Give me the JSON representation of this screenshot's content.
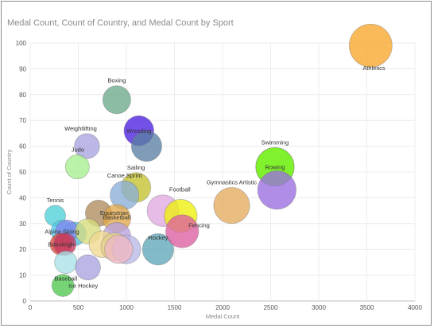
{
  "chart_data": {
    "type": "scatter",
    "title": "Medal Count, Count of Country, and Medal Count by Sport",
    "xlabel": "Medal Count",
    "ylabel": "Count of Country",
    "xlim": [
      0,
      4000
    ],
    "ylim": [
      0,
      100
    ],
    "xticks": [
      0,
      500,
      1000,
      1500,
      2000,
      2500,
      3000,
      3500,
      4000
    ],
    "yticks": [
      0,
      10,
      20,
      30,
      40,
      50,
      60,
      70,
      80,
      90,
      100
    ],
    "grid": true,
    "size_measure": "Medal Count",
    "points": [
      {
        "label": "Athletics",
        "x": 3540,
        "y": 99,
        "color": "#f9a72b"
      },
      {
        "label": "Boxing",
        "x": 900,
        "y": 78,
        "color": "#6bab8a"
      },
      {
        "label": "Wrestling",
        "x": 1130,
        "y": 66,
        "color": "#4b1fe0"
      },
      {
        "label": "",
        "x": 1210,
        "y": 60,
        "color": "#5a7fa3"
      },
      {
        "label": "Weightlifting",
        "x": 590,
        "y": 60,
        "color": "#a8a3e0"
      },
      {
        "label": "Judo",
        "x": 490,
        "y": 52,
        "color": "#a6ee8e"
      },
      {
        "label": "Swimming",
        "x": 2545,
        "y": 52,
        "color": "#7af023"
      },
      {
        "label": "Rowing",
        "x": 2545,
        "y": 52,
        "color": "#7af023"
      },
      {
        "label": "",
        "x": 2565,
        "y": 43,
        "color": "#9a6ee0"
      },
      {
        "label": "Sailing",
        "x": 1100,
        "y": 44,
        "color": "#c3c22e"
      },
      {
        "label": "Canoe Sprint",
        "x": 980,
        "y": 41,
        "color": "#8aaed8"
      },
      {
        "label": "Gymnastics Artistic",
        "x": 2095,
        "y": 37,
        "color": "#e4ab5c"
      },
      {
        "label": "Football",
        "x": 1380,
        "y": 35,
        "color": "#e0a9e0"
      },
      {
        "label": "",
        "x": 1565,
        "y": 33,
        "color": "#eef00c"
      },
      {
        "label": "Equestrian",
        "x": 710,
        "y": 34,
        "color": "#b08c5c"
      },
      {
        "label": "",
        "x": 900,
        "y": 32,
        "color": "#e0a84a"
      },
      {
        "label": "Tennis",
        "x": 260,
        "y": 33,
        "color": "#4fd0d8"
      },
      {
        "label": "Alpine Skiing",
        "x": 330,
        "y": 27,
        "color": "#4fc8e8"
      },
      {
        "label": "",
        "x": 460,
        "y": 26,
        "color": "#4fc0e0"
      },
      {
        "label": "",
        "x": 380,
        "y": 27,
        "color": "#7f88ee"
      },
      {
        "label": "",
        "x": 600,
        "y": 27,
        "color": "#d6dc7c"
      },
      {
        "label": "Basketball",
        "x": 900,
        "y": 25,
        "color": "#b9a2e0"
      },
      {
        "label": "Hockey",
        "x": 1330,
        "y": 20,
        "color": "#5fa6b8"
      },
      {
        "label": "Fencing",
        "x": 1580,
        "y": 27,
        "color": "#dc5fa0"
      },
      {
        "label": "",
        "x": 750,
        "y": 22,
        "color": "#f0d890"
      },
      {
        "label": "",
        "x": 880,
        "y": 21,
        "color": "#e3d08a"
      },
      {
        "label": "",
        "x": 1000,
        "y": 20,
        "color": "#b9b9e8"
      },
      {
        "label": "",
        "x": 920,
        "y": 20,
        "color": "#f0b8c4"
      },
      {
        "label": "Bobsleigh",
        "x": 320,
        "y": 22,
        "color": "#e0473a"
      },
      {
        "label": "",
        "x": 360,
        "y": 22,
        "color": "#c53a60"
      },
      {
        "label": "Baseball",
        "x": 370,
        "y": 15,
        "color": "#a8e0e8"
      },
      {
        "label": "",
        "x": 600,
        "y": 13,
        "color": "#a8a3e0"
      },
      {
        "label": "Ice Hockey",
        "x": 340,
        "y": 6,
        "color": "#4fc84f"
      }
    ]
  }
}
